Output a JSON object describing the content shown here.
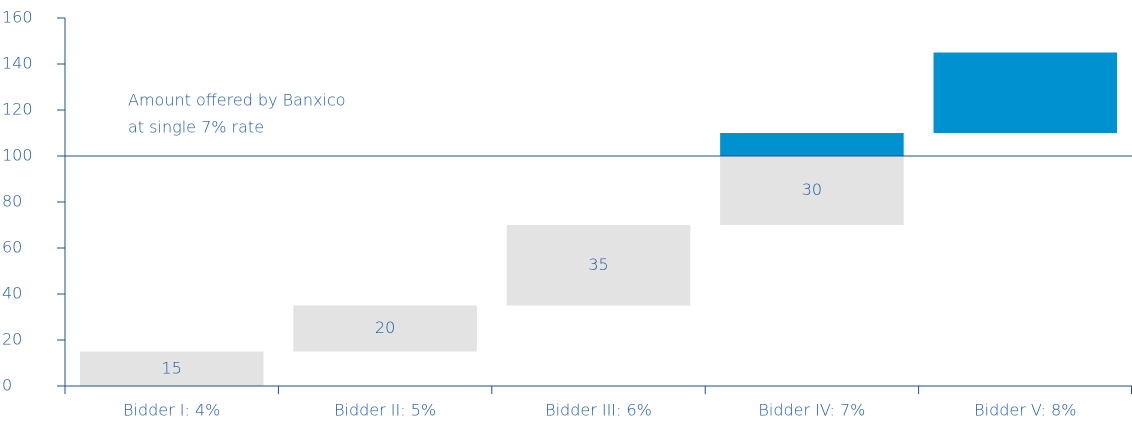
{
  "chart_data": {
    "type": "waterfall",
    "categories": [
      "Bidder I: 4%",
      "Bidder II: 5%",
      "Bidder III: 6%",
      "Bidder IV: 7%",
      "Bidder V: 8%"
    ],
    "series": [
      {
        "color": "#e3e3e3",
        "values": [
          15,
          20,
          35,
          30,
          null
        ],
        "labels": true
      },
      {
        "color": "#0091d1",
        "values": [
          null,
          null,
          null,
          10,
          35
        ],
        "labels": false
      }
    ],
    "ylim": [
      0,
      160
    ],
    "yticks": [
      0,
      20,
      40,
      60,
      80,
      100,
      120,
      140,
      160
    ],
    "reference_line": {
      "y": 100,
      "text": [
        "Amount offered by Banxico",
        "at single 7% rate"
      ]
    }
  }
}
